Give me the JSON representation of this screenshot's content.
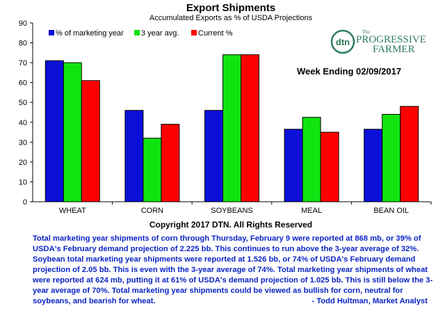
{
  "chart_data": {
    "type": "bar",
    "title": "Export Shipments",
    "subtitle": "Accumulated Exports as % of USDA Projections",
    "categories": [
      "WHEAT",
      "CORN",
      "SOYBEANS",
      "MEAL",
      "BEAN OIL"
    ],
    "series": [
      {
        "name": "% of marketing year",
        "color": "#0a10d8",
        "values": [
          71,
          46,
          46,
          36.5,
          36.5
        ]
      },
      {
        "name": "3 year avg.",
        "color": "#11e311",
        "values": [
          70,
          32,
          74,
          42.5,
          44
        ]
      },
      {
        "name": "Current %",
        "color": "#ff0000",
        "values": [
          61,
          39,
          74,
          35,
          48
        ]
      }
    ],
    "ylim": [
      0,
      90
    ],
    "yticks": [
      "0",
      "10",
      "20",
      "30",
      "40",
      "50",
      "60",
      "70",
      "80",
      "90"
    ],
    "grid": false,
    "legend_position": "top-left",
    "annotation": "Week Ending 02/09/2017",
    "copyright": "Copyright 2017 DTN. All Rights Reserved"
  },
  "logo": {
    "dtn": "dtn",
    "the": "The",
    "progressive": "PROGRESSIVE",
    "farmer": "FARMER"
  },
  "commentary": {
    "text": "Total marketing year shipments of corn through Thursday, February 9 were reported at 868 mb, or 39% of USDA's February demand projection of 2.225 bb. This continues to run above the 3-year average of 32%. Soybean total marketing year shipments were reported at 1.526 bb, or 74% of USDA's February demand projection of 2.05 bb. This is even with the 3-year average of 74%. Total marketing year shipments of wheat were reported at 624 mb, putting it at 61% of USDA's demand projection of 1.025 bb. This is still below the 3-year average of 70%. Total marketing year shipments could be viewed as bullish for corn, neutral for soybeans, and bearish for wheat.",
    "author": "- Todd Hultman, Market Analyst"
  }
}
